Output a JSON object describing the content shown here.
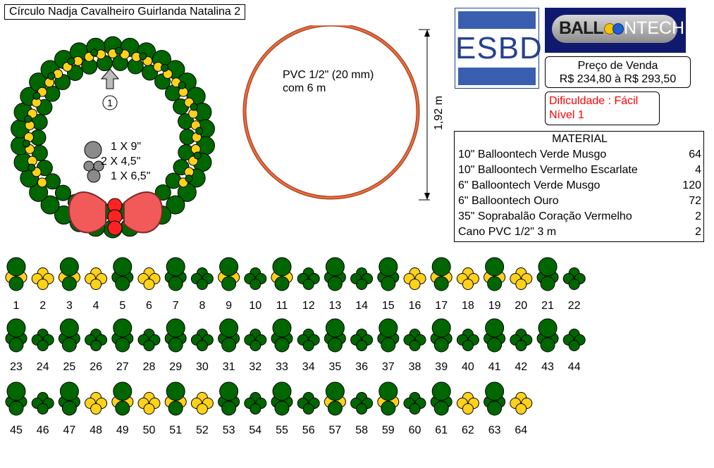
{
  "title": "Círculo Nadja Cavalheiro Guirlanda Natalina 2",
  "wreath": {
    "marker_label": "1",
    "legend": [
      "1 X 9\"",
      "2 X 4,5\"",
      "1 X 6,5\""
    ]
  },
  "frame": {
    "spec_line1": "PVC 1/2\" (20 mm)",
    "spec_line2": "com 6 m",
    "diameter": "1,92 m"
  },
  "logos": {
    "esbd": "ESBD",
    "balloontech_left": "BALL",
    "balloontech_right": "NTECH"
  },
  "price": {
    "label": "Preço de Venda",
    "range": "R$ 234,80 à R$ 293,50"
  },
  "difficulty": {
    "line1": "Dificuldade : Fácil",
    "line2": "Nível 1"
  },
  "material": {
    "title": "MATERIAL",
    "items": [
      {
        "name": "10\" Balloontech Verde Musgo",
        "qty": "64"
      },
      {
        "name": "10\" Balloontech Vermelho Escarlate",
        "qty": "4"
      },
      {
        "name": "6\" Balloontech Verde Musgo",
        "qty": "120"
      },
      {
        "name": "6\" Balloontech Ouro",
        "qty": "72"
      },
      {
        "name": "35\" Soprabalão Coração Vermelho",
        "qty": "2"
      },
      {
        "name": "Cano PVC 1/2\" 3 m",
        "qty": "2"
      }
    ]
  },
  "colors": {
    "green": "#006600",
    "gold": "#ffd21a",
    "red": "#ff2222",
    "heart": "#f25a5a",
    "gray": "#8a8a8a",
    "ring": "#ef6a3a"
  },
  "clusters": {
    "types": [
      "A",
      "B",
      "A",
      "B",
      "A",
      "B",
      "A",
      "C",
      "A",
      "C",
      "A",
      "C",
      "A",
      "C",
      "A",
      "B",
      "A",
      "B",
      "A",
      "B",
      "A",
      "C",
      "A",
      "C",
      "A",
      "C",
      "A",
      "C",
      "A",
      "C",
      "A",
      "C",
      "A",
      "C",
      "A",
      "C",
      "A",
      "C",
      "A",
      "C",
      "A",
      "C",
      "A",
      "C",
      "A",
      "C",
      "A",
      "B",
      "A",
      "B",
      "A",
      "B",
      "A",
      "C",
      "A",
      "C",
      "A",
      "C",
      "A",
      "C",
      "A",
      "B",
      "A",
      "B"
    ],
    "labels": [
      "1",
      "2",
      "3",
      "4",
      "5",
      "6",
      "7",
      "8",
      "9",
      "10",
      "11",
      "12",
      "13",
      "14",
      "15",
      "16",
      "17",
      "18",
      "19",
      "20",
      "21",
      "22",
      "23",
      "24",
      "25",
      "26",
      "27",
      "28",
      "29",
      "30",
      "31",
      "32",
      "33",
      "34",
      "35",
      "36",
      "37",
      "38",
      "39",
      "40",
      "41",
      "42",
      "43",
      "44",
      "45",
      "46",
      "47",
      "48",
      "49",
      "50",
      "51",
      "52",
      "53",
      "54",
      "55",
      "56",
      "57",
      "58",
      "59",
      "60",
      "61",
      "62",
      "63",
      "64"
    ]
  }
}
